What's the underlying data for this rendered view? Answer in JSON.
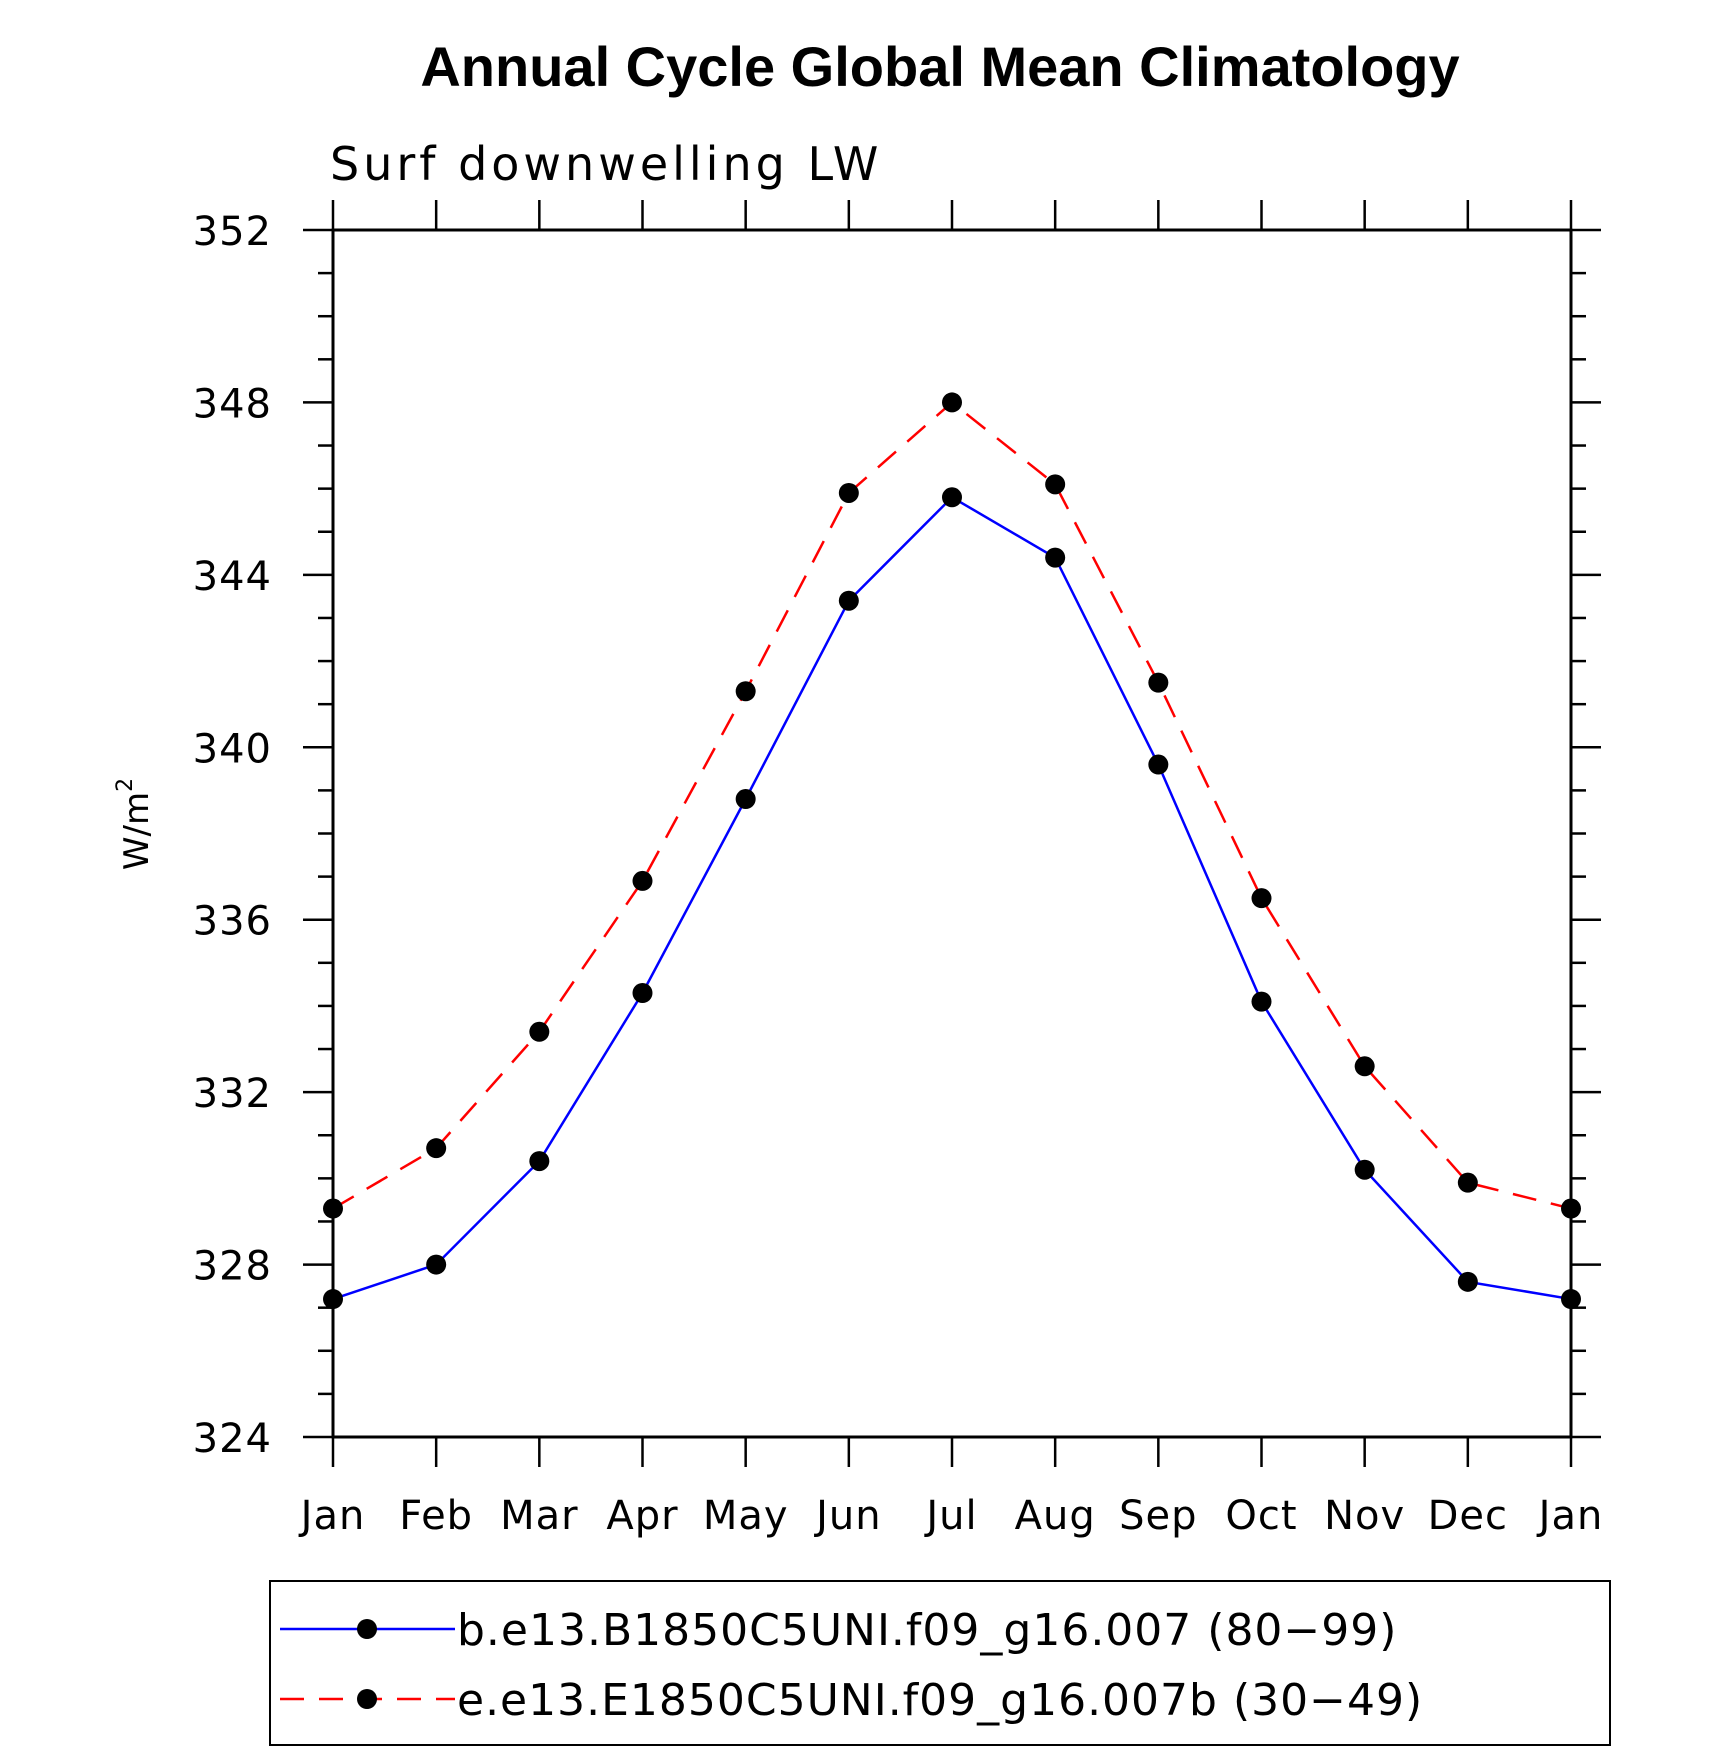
{
  "chart_data": {
    "type": "line",
    "title": "Annual Cycle Global Mean Climatology",
    "subtitle": "Surf downwelling LW",
    "ylabel": "W/m",
    "ylabel_superscript": "2",
    "categories": [
      "Jan",
      "Feb",
      "Mar",
      "Apr",
      "May",
      "Jun",
      "Jul",
      "Aug",
      "Sep",
      "Oct",
      "Nov",
      "Dec",
      "Jan"
    ],
    "ylim": [
      324,
      352
    ],
    "yticks": [
      324,
      328,
      332,
      336,
      340,
      344,
      348,
      352
    ],
    "series": [
      {
        "name": "b.e13.B1850C5UNI.f09_g16.007 (80−99)",
        "color": "#0000ff",
        "dash": "solid",
        "values": [
          327.2,
          328.0,
          330.4,
          334.3,
          338.8,
          343.4,
          345.8,
          344.4,
          339.6,
          334.1,
          330.2,
          327.6,
          327.2
        ]
      },
      {
        "name": "e.e13.E1850C5UNI.f09_g16.007b (30−49)",
        "color": "#ff0000",
        "dash": "dashed",
        "values": [
          329.3,
          330.7,
          333.4,
          336.9,
          341.3,
          345.9,
          348.0,
          346.1,
          341.5,
          336.5,
          332.6,
          329.9,
          329.3
        ]
      }
    ],
    "marker_color": "#000000",
    "grid": false,
    "legend_position": "bottom"
  }
}
